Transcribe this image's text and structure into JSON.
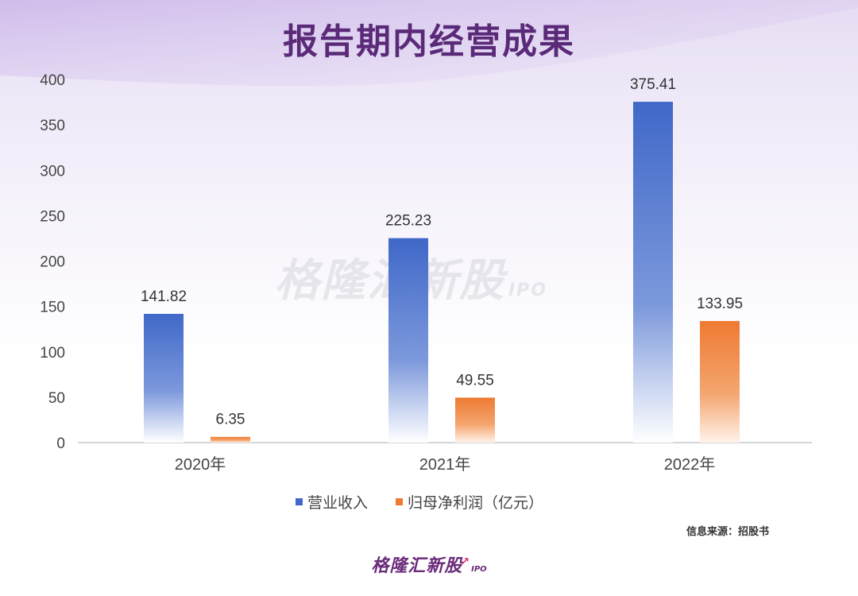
{
  "title": "报告期内经营成果",
  "source_text": "信息来源：招股书",
  "watermark": {
    "brand": "格隆汇新股",
    "suffix": "IPO"
  },
  "footer": {
    "brand": "格隆汇新股",
    "suffix": "IPO"
  },
  "colors": {
    "revenue": "#3f68c8",
    "profit": "#ee7a32",
    "title": "#5a2a78",
    "brand": "#6a2b7a"
  },
  "icons": [
    "legend-revenue-marker",
    "legend-profit-marker",
    "brand-arrow-icon"
  ],
  "chart_data": {
    "type": "bar",
    "categories": [
      "2020年",
      "2021年",
      "2022年"
    ],
    "series": [
      {
        "name": "营业收入",
        "values": [
          141.82,
          225.23,
          375.41
        ],
        "labels": [
          "141.82",
          "225.23",
          "375.41"
        ]
      },
      {
        "name": "归母净利润（亿元）",
        "values": [
          6.35,
          49.55,
          133.95
        ],
        "labels": [
          "6.35",
          "49.55",
          "133.95"
        ]
      }
    ],
    "ylim": [
      0,
      400
    ],
    "yticks": [
      "0",
      "50",
      "100",
      "150",
      "200",
      "250",
      "300",
      "350",
      "400"
    ],
    "grid": false,
    "legend": "bottom-center"
  }
}
